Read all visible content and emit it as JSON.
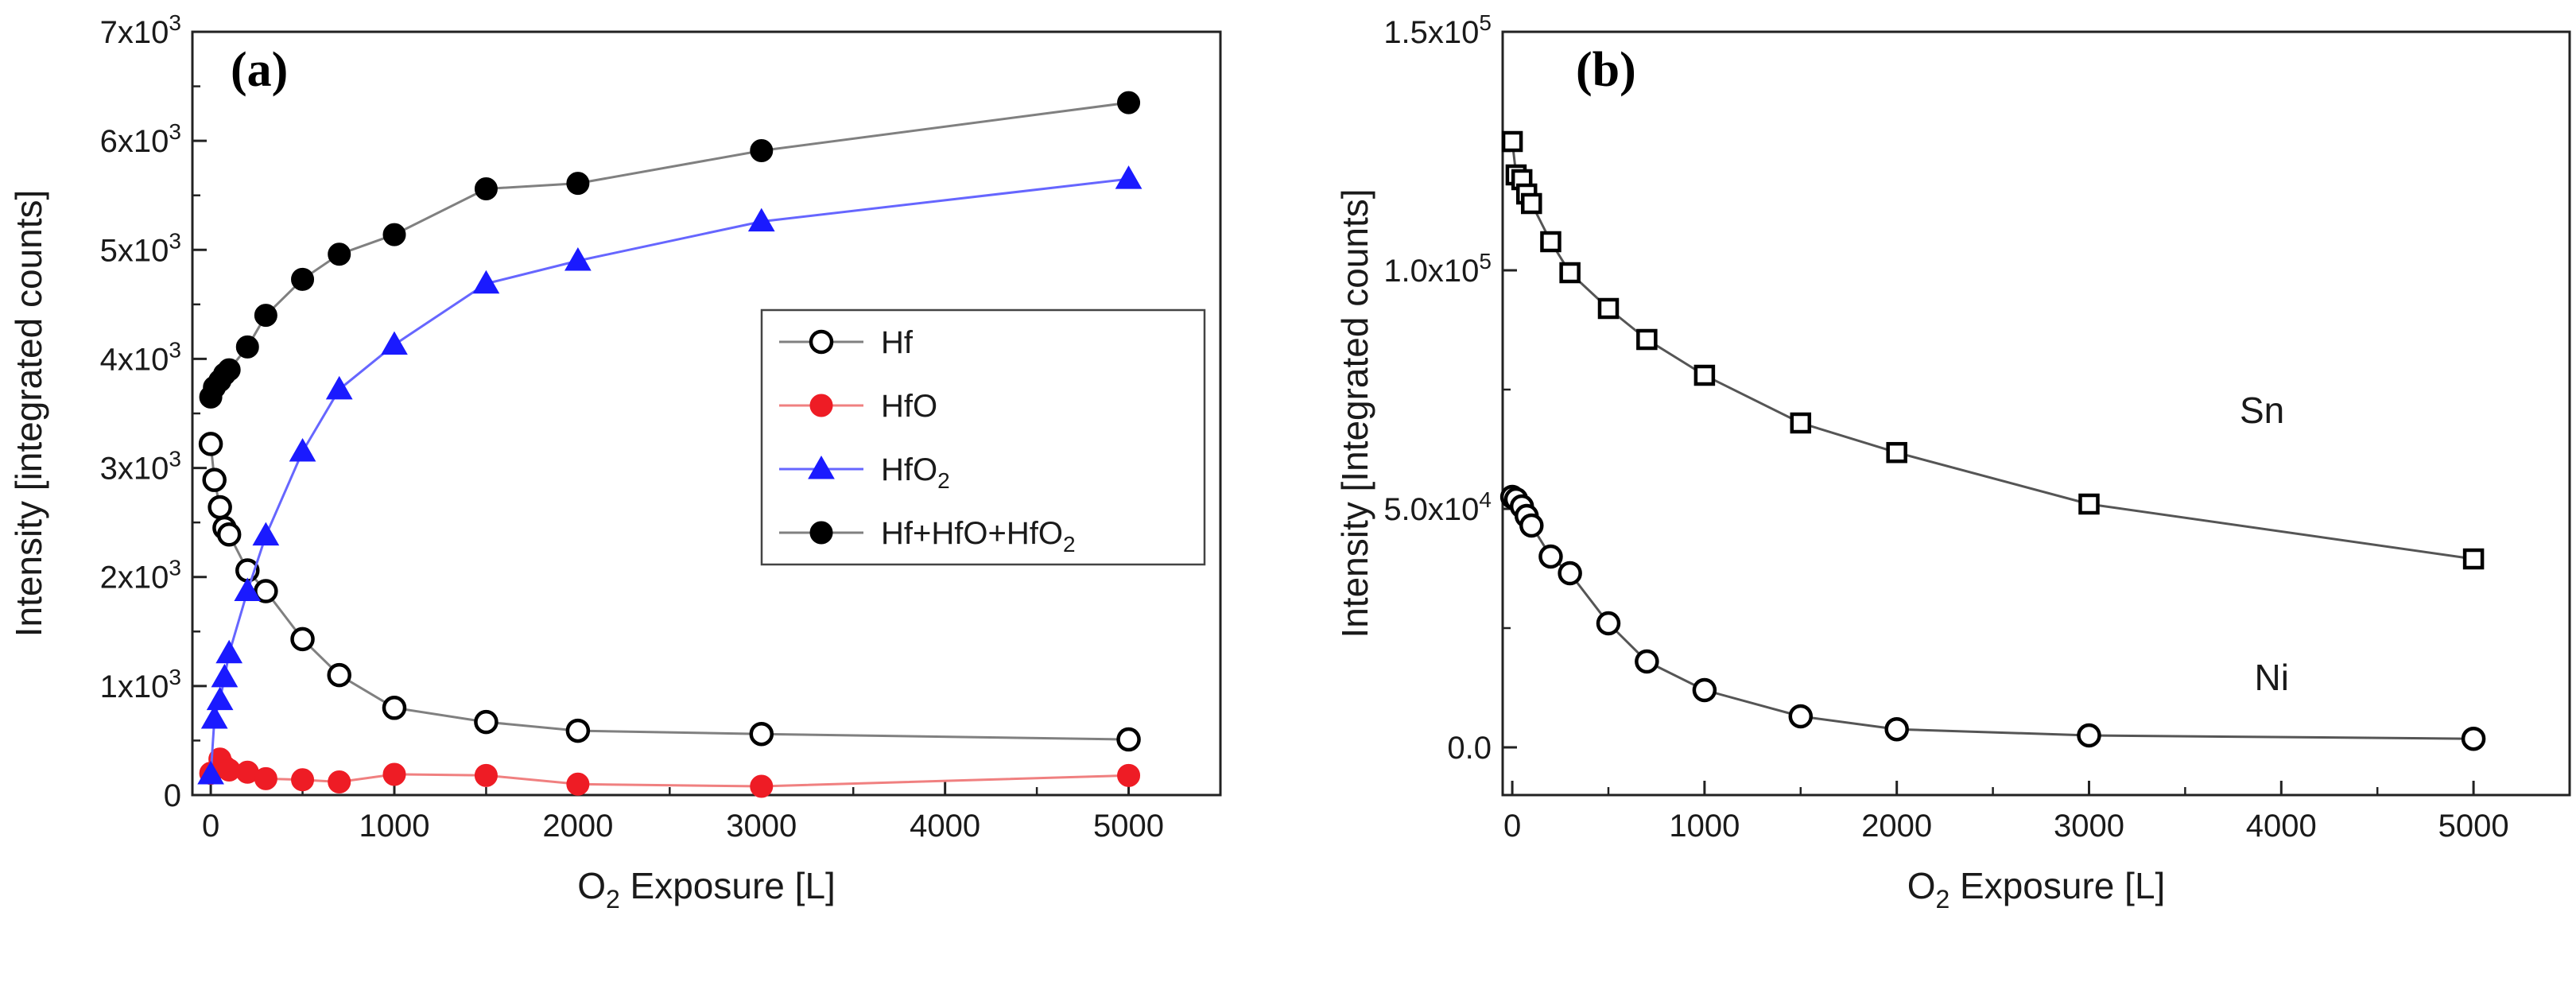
{
  "chart_data": [
    {
      "panel": "(a)",
      "type": "line",
      "xlabel": {
        "pre": "O",
        "sub": "2",
        "post": " Exposure [L]"
      },
      "ylabel": "Intensity [integrated counts]",
      "xlim": [
        -100,
        5500
      ],
      "ylim": [
        0,
        7000
      ],
      "xticks": [
        0,
        1000,
        2000,
        3000,
        4000,
        5000
      ],
      "xtick_labels": [
        "0",
        "1000",
        "2000",
        "3000",
        "4000",
        "5000"
      ],
      "yticks": [
        0,
        1000,
        2000,
        3000,
        4000,
        5000,
        6000,
        7000
      ],
      "ytick_labels": [
        {
          "base": "0",
          "exp": ""
        },
        {
          "base": "1x10",
          "exp": "3"
        },
        {
          "base": "2x10",
          "exp": "3"
        },
        {
          "base": "3x10",
          "exp": "3"
        },
        {
          "base": "4x10",
          "exp": "3"
        },
        {
          "base": "5x10",
          "exp": "3"
        },
        {
          "base": "6x10",
          "exp": "3"
        },
        {
          "base": "7x10",
          "exp": "3"
        }
      ],
      "legend_position": "center-right",
      "series": [
        {
          "name": "Hf",
          "legend": {
            "base": "Hf",
            "sub": "",
            "post": ""
          },
          "marker": "circle-open",
          "color": "#000000",
          "line": "#808080",
          "x": [
            0,
            20,
            50,
            75,
            100,
            200,
            300,
            500,
            700,
            1000,
            1500,
            2000,
            3000,
            5000
          ],
          "y": [
            3220,
            2890,
            2640,
            2450,
            2390,
            2060,
            1870,
            1430,
            1100,
            800,
            670,
            590,
            560,
            510
          ]
        },
        {
          "name": "HfO",
          "legend": {
            "base": "HfO",
            "sub": "",
            "post": ""
          },
          "marker": "circle-filled",
          "color": "#ee1c25",
          "line": "#f08080",
          "x": [
            0,
            50,
            75,
            100,
            200,
            300,
            500,
            700,
            1000,
            1500,
            2000,
            3000,
            5000
          ],
          "y": [
            200,
            330,
            260,
            230,
            210,
            150,
            140,
            120,
            190,
            180,
            100,
            80,
            180
          ]
        },
        {
          "name": "HfO2",
          "legend": {
            "base": "HfO",
            "sub": "2",
            "post": ""
          },
          "marker": "triangle-filled",
          "color": "#1a1aff",
          "line": "#6666ff",
          "x": [
            0,
            20,
            50,
            75,
            100,
            200,
            300,
            500,
            700,
            1000,
            1500,
            2000,
            3000,
            5000
          ],
          "y": [
            190,
            700,
            870,
            1080,
            1300,
            1870,
            2380,
            3150,
            3720,
            4130,
            4690,
            4900,
            5260,
            5650
          ]
        },
        {
          "name": "Hf+HfO+HfO2",
          "legend": {
            "base": "Hf+HfO+HfO",
            "sub": "2",
            "post": ""
          },
          "marker": "circle-filled",
          "color": "#000000",
          "line": "#808080",
          "x": [
            0,
            20,
            50,
            75,
            100,
            200,
            300,
            500,
            700,
            1000,
            1500,
            2000,
            3000,
            5000
          ],
          "y": [
            3650,
            3740,
            3800,
            3860,
            3900,
            4110,
            4400,
            4730,
            4960,
            5140,
            5560,
            5610,
            5910,
            6350
          ]
        }
      ]
    },
    {
      "panel": "(b)",
      "type": "line",
      "xlabel": {
        "pre": "O",
        "sub": "2",
        "post": " Exposure [L]"
      },
      "ylabel": "Intensity [Integrated counts]",
      "xlim": [
        -50,
        5500
      ],
      "ylim": [
        -10000,
        150000
      ],
      "xticks": [
        0,
        1000,
        2000,
        3000,
        4000,
        5000
      ],
      "xtick_labels": [
        "0",
        "1000",
        "2000",
        "3000",
        "4000",
        "5000"
      ],
      "yticks": [
        0,
        50000,
        100000,
        150000
      ],
      "ytick_labels": [
        {
          "base": "0.0",
          "exp": ""
        },
        {
          "base": "5.0x10",
          "exp": "4"
        },
        {
          "base": "1.0x10",
          "exp": "5"
        },
        {
          "base": "1.5x10",
          "exp": "5"
        }
      ],
      "annotations": [
        {
          "text": "Sn",
          "x": 3900,
          "y": 68000
        },
        {
          "text": "Ni",
          "x": 3950,
          "y": 12000
        }
      ],
      "series": [
        {
          "name": "Sn",
          "marker": "square-open",
          "color": "#000000",
          "line": "#555555",
          "x": [
            0,
            20,
            50,
            75,
            100,
            200,
            300,
            500,
            700,
            1000,
            1500,
            2000,
            3000,
            5000
          ],
          "y": [
            127000,
            120000,
            119000,
            116000,
            114000,
            106000,
            99500,
            92000,
            85500,
            78000,
            68000,
            61800,
            51000,
            39500
          ]
        },
        {
          "name": "Ni",
          "marker": "circle-open",
          "color": "#000000",
          "line": "#555555",
          "x": [
            0,
            20,
            50,
            75,
            100,
            200,
            300,
            500,
            700,
            1000,
            1500,
            2000,
            3000,
            5000
          ],
          "y": [
            52500,
            52000,
            50500,
            48500,
            46500,
            40000,
            36500,
            26000,
            18000,
            12000,
            6500,
            3800,
            2500,
            1800
          ]
        }
      ]
    }
  ]
}
